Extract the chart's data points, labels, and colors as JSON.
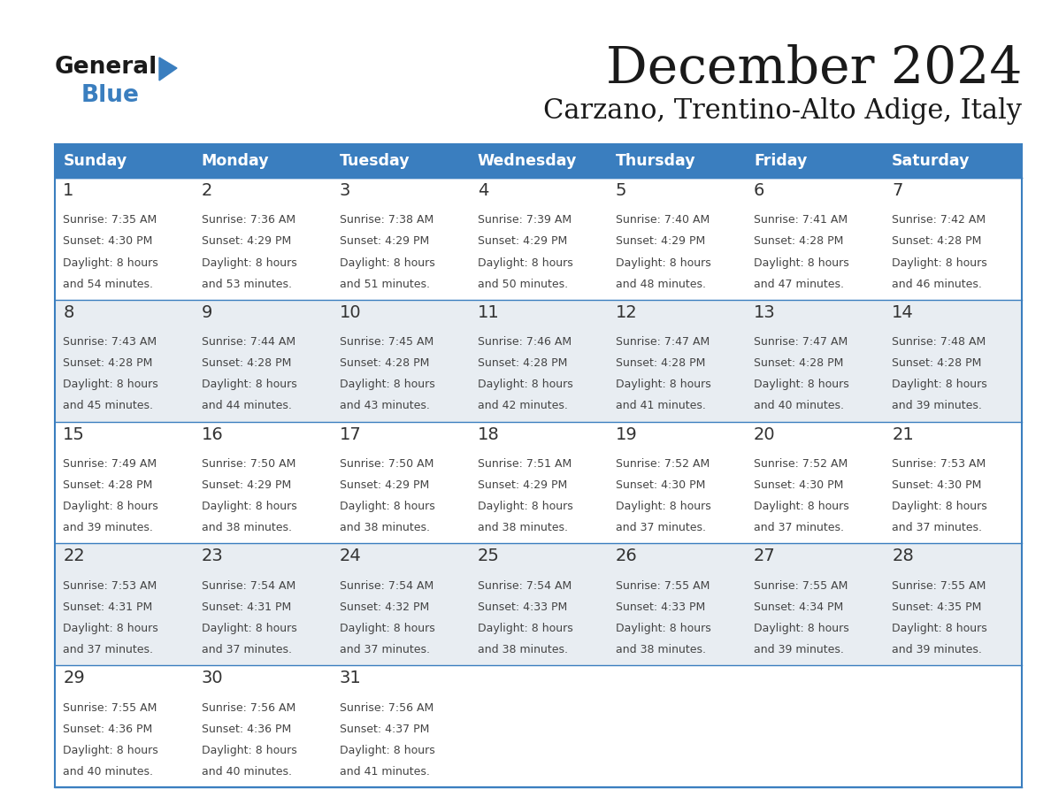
{
  "title": "December 2024",
  "subtitle": "Carzano, Trentino-Alto Adige, Italy",
  "days_of_week": [
    "Sunday",
    "Monday",
    "Tuesday",
    "Wednesday",
    "Thursday",
    "Friday",
    "Saturday"
  ],
  "header_bg": "#3a7ebf",
  "header_text": "#ffffff",
  "row_bg_white": "#ffffff",
  "row_bg_gray": "#e8edf2",
  "border_color": "#3a7ebf",
  "day_num_color": "#333333",
  "cell_text_color": "#444444",
  "title_color": "#1a1a1a",
  "subtitle_color": "#1a1a1a",
  "logo_text_color": "#1a1a1a",
  "logo_blue_color": "#3a7ebf",
  "weeks": [
    [
      {
        "day": 1,
        "sunrise": "7:35 AM",
        "sunset": "4:30 PM",
        "daylight": "8 hours and 54 minutes."
      },
      {
        "day": 2,
        "sunrise": "7:36 AM",
        "sunset": "4:29 PM",
        "daylight": "8 hours and 53 minutes."
      },
      {
        "day": 3,
        "sunrise": "7:38 AM",
        "sunset": "4:29 PM",
        "daylight": "8 hours and 51 minutes."
      },
      {
        "day": 4,
        "sunrise": "7:39 AM",
        "sunset": "4:29 PM",
        "daylight": "8 hours and 50 minutes."
      },
      {
        "day": 5,
        "sunrise": "7:40 AM",
        "sunset": "4:29 PM",
        "daylight": "8 hours and 48 minutes."
      },
      {
        "day": 6,
        "sunrise": "7:41 AM",
        "sunset": "4:28 PM",
        "daylight": "8 hours and 47 minutes."
      },
      {
        "day": 7,
        "sunrise": "7:42 AM",
        "sunset": "4:28 PM",
        "daylight": "8 hours and 46 minutes."
      }
    ],
    [
      {
        "day": 8,
        "sunrise": "7:43 AM",
        "sunset": "4:28 PM",
        "daylight": "8 hours and 45 minutes."
      },
      {
        "day": 9,
        "sunrise": "7:44 AM",
        "sunset": "4:28 PM",
        "daylight": "8 hours and 44 minutes."
      },
      {
        "day": 10,
        "sunrise": "7:45 AM",
        "sunset": "4:28 PM",
        "daylight": "8 hours and 43 minutes."
      },
      {
        "day": 11,
        "sunrise": "7:46 AM",
        "sunset": "4:28 PM",
        "daylight": "8 hours and 42 minutes."
      },
      {
        "day": 12,
        "sunrise": "7:47 AM",
        "sunset": "4:28 PM",
        "daylight": "8 hours and 41 minutes."
      },
      {
        "day": 13,
        "sunrise": "7:47 AM",
        "sunset": "4:28 PM",
        "daylight": "8 hours and 40 minutes."
      },
      {
        "day": 14,
        "sunrise": "7:48 AM",
        "sunset": "4:28 PM",
        "daylight": "8 hours and 39 minutes."
      }
    ],
    [
      {
        "day": 15,
        "sunrise": "7:49 AM",
        "sunset": "4:28 PM",
        "daylight": "8 hours and 39 minutes."
      },
      {
        "day": 16,
        "sunrise": "7:50 AM",
        "sunset": "4:29 PM",
        "daylight": "8 hours and 38 minutes."
      },
      {
        "day": 17,
        "sunrise": "7:50 AM",
        "sunset": "4:29 PM",
        "daylight": "8 hours and 38 minutes."
      },
      {
        "day": 18,
        "sunrise": "7:51 AM",
        "sunset": "4:29 PM",
        "daylight": "8 hours and 38 minutes."
      },
      {
        "day": 19,
        "sunrise": "7:52 AM",
        "sunset": "4:30 PM",
        "daylight": "8 hours and 37 minutes."
      },
      {
        "day": 20,
        "sunrise": "7:52 AM",
        "sunset": "4:30 PM",
        "daylight": "8 hours and 37 minutes."
      },
      {
        "day": 21,
        "sunrise": "7:53 AM",
        "sunset": "4:30 PM",
        "daylight": "8 hours and 37 minutes."
      }
    ],
    [
      {
        "day": 22,
        "sunrise": "7:53 AM",
        "sunset": "4:31 PM",
        "daylight": "8 hours and 37 minutes."
      },
      {
        "day": 23,
        "sunrise": "7:54 AM",
        "sunset": "4:31 PM",
        "daylight": "8 hours and 37 minutes."
      },
      {
        "day": 24,
        "sunrise": "7:54 AM",
        "sunset": "4:32 PM",
        "daylight": "8 hours and 37 minutes."
      },
      {
        "day": 25,
        "sunrise": "7:54 AM",
        "sunset": "4:33 PM",
        "daylight": "8 hours and 38 minutes."
      },
      {
        "day": 26,
        "sunrise": "7:55 AM",
        "sunset": "4:33 PM",
        "daylight": "8 hours and 38 minutes."
      },
      {
        "day": 27,
        "sunrise": "7:55 AM",
        "sunset": "4:34 PM",
        "daylight": "8 hours and 39 minutes."
      },
      {
        "day": 28,
        "sunrise": "7:55 AM",
        "sunset": "4:35 PM",
        "daylight": "8 hours and 39 minutes."
      }
    ],
    [
      {
        "day": 29,
        "sunrise": "7:55 AM",
        "sunset": "4:36 PM",
        "daylight": "8 hours and 40 minutes."
      },
      {
        "day": 30,
        "sunrise": "7:56 AM",
        "sunset": "4:36 PM",
        "daylight": "8 hours and 40 minutes."
      },
      {
        "day": 31,
        "sunrise": "7:56 AM",
        "sunset": "4:37 PM",
        "daylight": "8 hours and 41 minutes."
      },
      null,
      null,
      null,
      null
    ]
  ]
}
